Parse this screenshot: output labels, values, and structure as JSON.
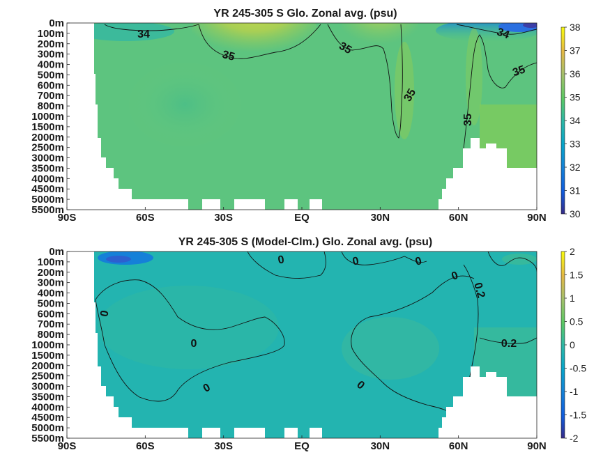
{
  "chart_data": [
    {
      "type": "heatmap",
      "title": "YR 245-305 S Glo. Zonal avg. (psu)",
      "xticks": [
        "90S",
        "60S",
        "30S",
        "EQ",
        "30N",
        "60N",
        "90N"
      ],
      "x_values": [
        -90,
        -60,
        -30,
        0,
        30,
        60,
        90
      ],
      "yticks": [
        "0m",
        "100m",
        "200m",
        "300m",
        "400m",
        "500m",
        "600m",
        "700m",
        "800m",
        "1000m",
        "1500m",
        "2000m",
        "2500m",
        "3000m",
        "3500m",
        "4000m",
        "4500m",
        "5000m",
        "5500m"
      ],
      "colorbar": {
        "min": 30,
        "max": 38,
        "ticks": [
          "38",
          "37",
          "36",
          "35",
          "34",
          "33",
          "32",
          "31",
          "30"
        ]
      },
      "contour_labels": [
        "34",
        "35",
        "35",
        "35",
        "35",
        "35",
        "34"
      ]
    },
    {
      "type": "heatmap",
      "title": "YR 245-305 S (Model-Clm.) Glo. Zonal avg. (psu)",
      "xticks": [
        "90S",
        "60S",
        "30S",
        "EQ",
        "30N",
        "60N",
        "90N"
      ],
      "x_values": [
        -90,
        -60,
        -30,
        0,
        30,
        60,
        90
      ],
      "yticks": [
        "0m",
        "100m",
        "200m",
        "300m",
        "400m",
        "500m",
        "600m",
        "700m",
        "800m",
        "1000m",
        "1500m",
        "2000m",
        "2500m",
        "3000m",
        "3500m",
        "4000m",
        "4500m",
        "5000m",
        "5500m"
      ],
      "colorbar": {
        "min": -2,
        "max": 2,
        "ticks": [
          "2",
          "1.5",
          "1",
          "0.5",
          "0",
          "-0.5",
          "-1",
          "-1.5",
          "-2"
        ]
      },
      "contour_labels": [
        "0",
        "0",
        "0",
        "0",
        "0",
        "0",
        "0",
        "0.2",
        "0.2",
        "0"
      ]
    }
  ]
}
